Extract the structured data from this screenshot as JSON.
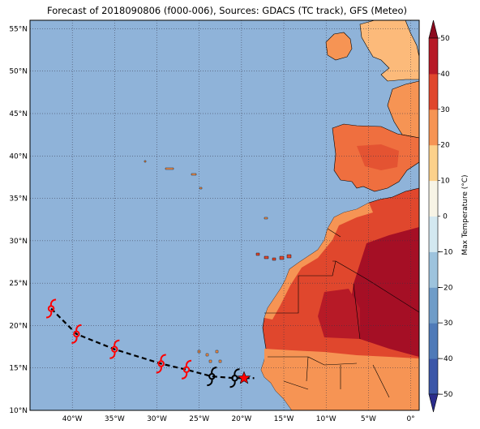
{
  "title": "Forecast of 2018090806 (f000-006), Sources: GDACS (TC track), GFS (Meteo)",
  "map": {
    "lon_range": [
      -45,
      1
    ],
    "lat_range": [
      10,
      56
    ],
    "lat_ticks": [
      "10°N",
      "15°N",
      "20°N",
      "25°N",
      "30°N",
      "35°N",
      "40°N",
      "45°N",
      "50°N",
      "55°N"
    ],
    "lon_ticks": [
      "40°W",
      "35°W",
      "30°W",
      "25°W",
      "20°W",
      "15°W",
      "10°W",
      "5°W",
      "0°"
    ],
    "ocean_color": "#8fb3d9",
    "grid": "dotted"
  },
  "colorbar": {
    "label": "Max Temperature (°C)",
    "ticks": [
      "−50",
      "−40",
      "−30",
      "−20",
      "−10",
      "0",
      "10",
      "20",
      "30",
      "40",
      "50"
    ],
    "colors": [
      "#2b2c8c",
      "#3b56a8",
      "#4f7ab8",
      "#6f9cc8",
      "#9dc3dd",
      "#d3e8f0",
      "#f7f4e6",
      "#fcd18b",
      "#f69454",
      "#e0472d",
      "#b71a27",
      "#8c0a1e"
    ]
  },
  "track": {
    "points": [
      {
        "lon": -42.5,
        "lat": 22.0,
        "color": "red"
      },
      {
        "lon": -39.5,
        "lat": 19.0,
        "color": "red"
      },
      {
        "lon": -35.0,
        "lat": 17.2,
        "color": "red"
      },
      {
        "lon": -29.5,
        "lat": 15.5,
        "color": "red"
      },
      {
        "lon": -26.5,
        "lat": 14.8,
        "color": "red"
      },
      {
        "lon": -23.5,
        "lat": 14.0,
        "color": "black"
      },
      {
        "lon": -20.8,
        "lat": 13.8,
        "color": "black"
      }
    ],
    "current": {
      "lon": -19.7,
      "lat": 13.8
    },
    "end_hint": {
      "lon": -18.5,
      "lat": 13.8
    }
  }
}
